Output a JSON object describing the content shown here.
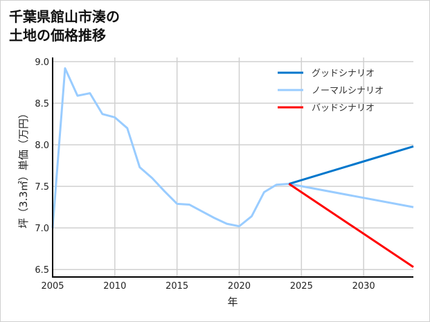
{
  "chart_data": {
    "type": "line",
    "title": [
      "千葉県館山市湊の",
      "土地の価格推移"
    ],
    "xlabel": "年",
    "ylabel": "坪（3.3㎡）単価（万円）",
    "xlim": [
      2005,
      2034
    ],
    "ylim": [
      6.41,
      9.05
    ],
    "xticks": [
      2005,
      2010,
      2015,
      2020,
      2025,
      2030
    ],
    "yticks": [
      6.5,
      7.0,
      7.5,
      8.0,
      8.5,
      9.0
    ],
    "ytick_labels": [
      "6.5",
      "7.0",
      "7.5",
      "8.0",
      "8.5",
      "9.0"
    ],
    "grid": true,
    "legend_position": "top-right",
    "series": [
      {
        "name": "グッドシナリオ",
        "color": "#0077cc",
        "x": [
          2024,
          2034
        ],
        "y": [
          7.53,
          7.98
        ]
      },
      {
        "name": "ノーマルシナリオ",
        "color": "#99ccff",
        "x": [
          2005,
          2006,
          2007,
          2008,
          2009,
          2010,
          2011,
          2012,
          2013,
          2014,
          2015,
          2016,
          2017,
          2018,
          2019,
          2020,
          2021,
          2022,
          2023,
          2024,
          2034
        ],
        "y": [
          7.0,
          8.92,
          8.59,
          8.62,
          8.37,
          8.33,
          8.2,
          7.73,
          7.6,
          7.44,
          7.29,
          7.28,
          7.2,
          7.12,
          7.05,
          7.02,
          7.14,
          7.43,
          7.52,
          7.53,
          7.25
        ]
      },
      {
        "name": "バッドシナリオ",
        "color": "#ff0000",
        "x": [
          2024,
          2034
        ],
        "y": [
          7.53,
          6.53
        ]
      }
    ]
  }
}
